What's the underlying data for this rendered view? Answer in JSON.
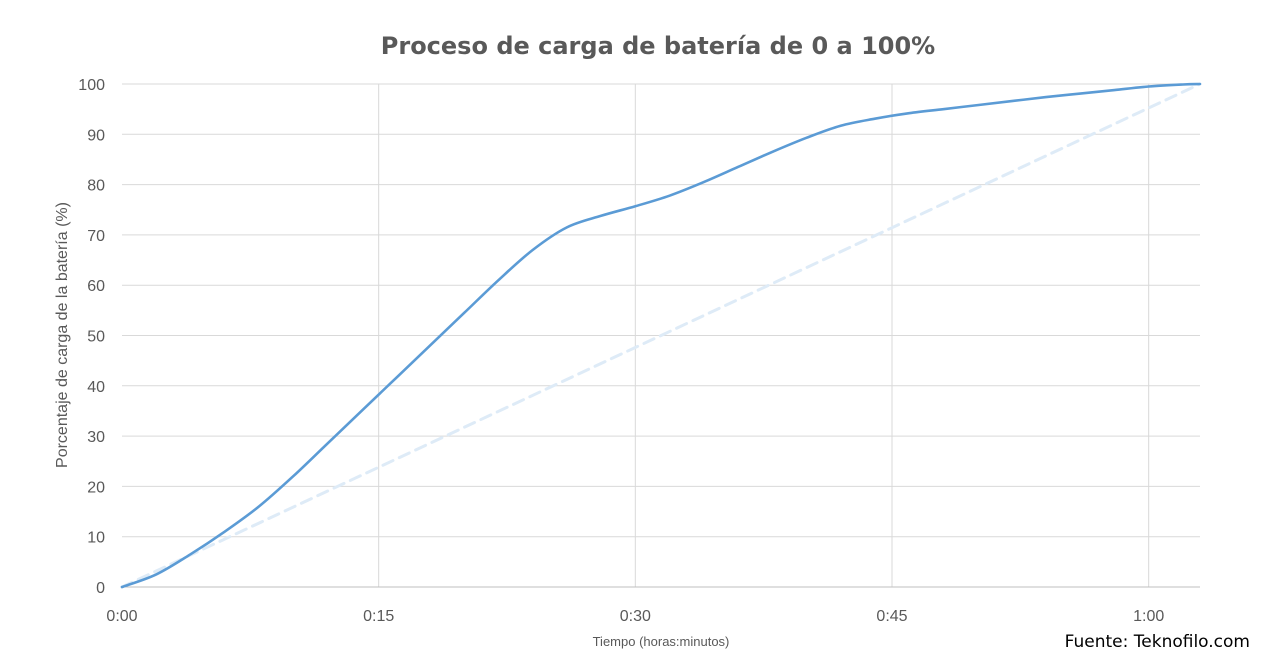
{
  "chart_data": {
    "type": "line",
    "title": "Proceso de carga de batería de 0 a 100%",
    "xlabel": "Tiempo (horas:minutos)",
    "ylabel": "Porcentaje de carga de la batería (%)",
    "x_unit": "minutes",
    "xlim": [
      0,
      63
    ],
    "ylim": [
      0,
      100
    ],
    "x_ticks": [
      {
        "value": 0,
        "label": "0:00"
      },
      {
        "value": 15,
        "label": "0:15"
      },
      {
        "value": 30,
        "label": "0:30"
      },
      {
        "value": 45,
        "label": "0:45"
      },
      {
        "value": 60,
        "label": "1:00"
      }
    ],
    "y_ticks": [
      0,
      10,
      20,
      30,
      40,
      50,
      60,
      70,
      80,
      90,
      100
    ],
    "grid": true,
    "series": [
      {
        "style": "solid",
        "color": "#5B9BD5",
        "x": [
          0,
          2,
          4,
          6,
          8,
          10,
          12,
          14,
          16,
          18,
          20,
          22,
          24,
          26,
          28,
          30,
          32,
          34,
          36,
          38,
          40,
          42,
          44,
          46,
          48,
          50,
          52,
          54,
          56,
          58,
          60,
          62,
          63
        ],
        "y": [
          0,
          2.5,
          6.5,
          11,
          16,
          22,
          28.5,
          35,
          41.5,
          48,
          54.5,
          61,
          67,
          71.5,
          73.8,
          75.7,
          77.8,
          80.5,
          83.5,
          86.5,
          89.3,
          91.7,
          93.1,
          94.2,
          95,
          95.8,
          96.6,
          97.4,
          98.1,
          98.8,
          99.5,
          99.9,
          100
        ]
      },
      {
        "style": "dashed",
        "color": "#DEEBF7",
        "x": [
          0,
          63
        ],
        "y": [
          0,
          100
        ]
      }
    ]
  },
  "source": "Fuente: Teknofilo.com"
}
